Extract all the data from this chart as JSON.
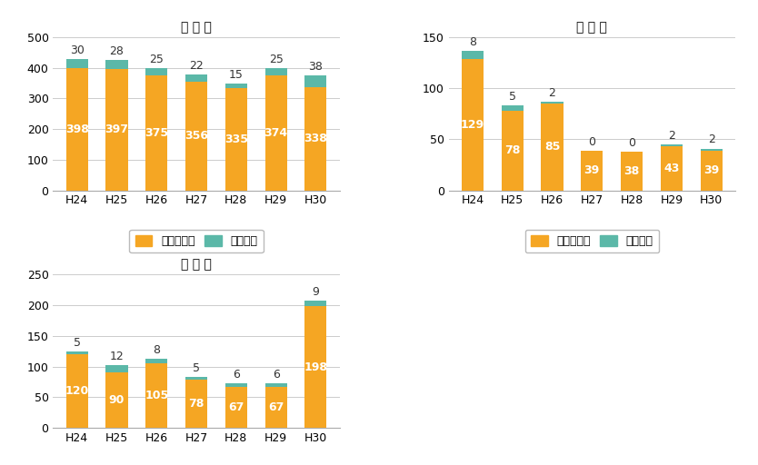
{
  "charts": [
    {
      "title": "地 上 系",
      "categories": [
        "H24",
        "H25",
        "H26",
        "H27",
        "H28",
        "H29",
        "H30"
      ],
      "non_major": [
        398,
        397,
        375,
        356,
        335,
        374,
        338
      ],
      "major": [
        30,
        28,
        25,
        22,
        15,
        25,
        38
      ],
      "ylim": [
        0,
        500
      ],
      "yticks": [
        0,
        100,
        200,
        300,
        400,
        500
      ]
    },
    {
      "title": "衛 星 系",
      "categories": [
        "H24",
        "H25",
        "H26",
        "H27",
        "H28",
        "H29",
        "H30"
      ],
      "non_major": [
        129,
        78,
        85,
        39,
        38,
        43,
        39
      ],
      "major": [
        8,
        5,
        2,
        0,
        0,
        2,
        2
      ],
      "ylim": [
        0,
        150
      ],
      "yticks": [
        0,
        50,
        100,
        150
      ]
    },
    {
      "title": "有 線 系",
      "categories": [
        "H24",
        "H25",
        "H26",
        "H27",
        "H28",
        "H29",
        "H30"
      ],
      "non_major": [
        120,
        90,
        105,
        78,
        67,
        67,
        198
      ],
      "major": [
        5,
        12,
        8,
        5,
        6,
        6,
        9
      ],
      "ylim": [
        0,
        250
      ],
      "yticks": [
        0,
        50,
        100,
        150,
        200,
        250
      ]
    }
  ],
  "color_non_major": "#F5A623",
  "color_major": "#5BB8A8",
  "bar_width": 0.55,
  "label_non_major": "非重大事故",
  "label_major": "重大事故",
  "bg_color": "#FFFFFF",
  "grid_color": "#CCCCCC",
  "text_color_white": "#FFFFFF",
  "text_color_dark": "#333333",
  "font_size_title": 10,
  "font_size_label": 9,
  "font_size_tick": 9
}
